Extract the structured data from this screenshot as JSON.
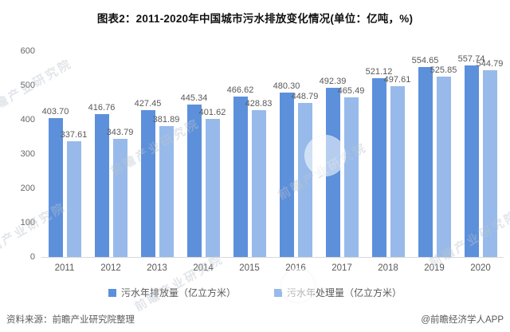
{
  "title": "图表2：2011-2020年中国城市污水排放变化情况(单位：亿吨，%)",
  "chart_data": {
    "type": "bar",
    "categories": [
      "2011",
      "2012",
      "2013",
      "2014",
      "2015",
      "2016",
      "2017",
      "2018",
      "2019",
      "2020"
    ],
    "series": [
      {
        "name": "污水年排放量（亿立方米）",
        "color": "#5D90DB",
        "values": [
          403.7,
          416.76,
          427.45,
          445.34,
          466.62,
          480.3,
          492.39,
          521.12,
          554.65,
          557.74
        ]
      },
      {
        "name": "污水年处理量（亿立方米）",
        "color": "#97BAEA",
        "values": [
          337.61,
          343.79,
          381.89,
          401.62,
          428.83,
          448.79,
          465.49,
          497.61,
          525.85,
          544.79
        ]
      }
    ],
    "ylabel": "",
    "xlabel": "",
    "ylim": [
      0,
      600
    ],
    "yticks": [
      0,
      100,
      200,
      300,
      400,
      500,
      600
    ],
    "grid": false,
    "legend_position": "bottom",
    "value_label_decimals": 2
  },
  "footer": {
    "source": "资料来源：前瞻产业研究院整理",
    "credit": "@前瞻经济学人APP"
  },
  "watermark": {
    "text": "前瞻产业研究院"
  }
}
